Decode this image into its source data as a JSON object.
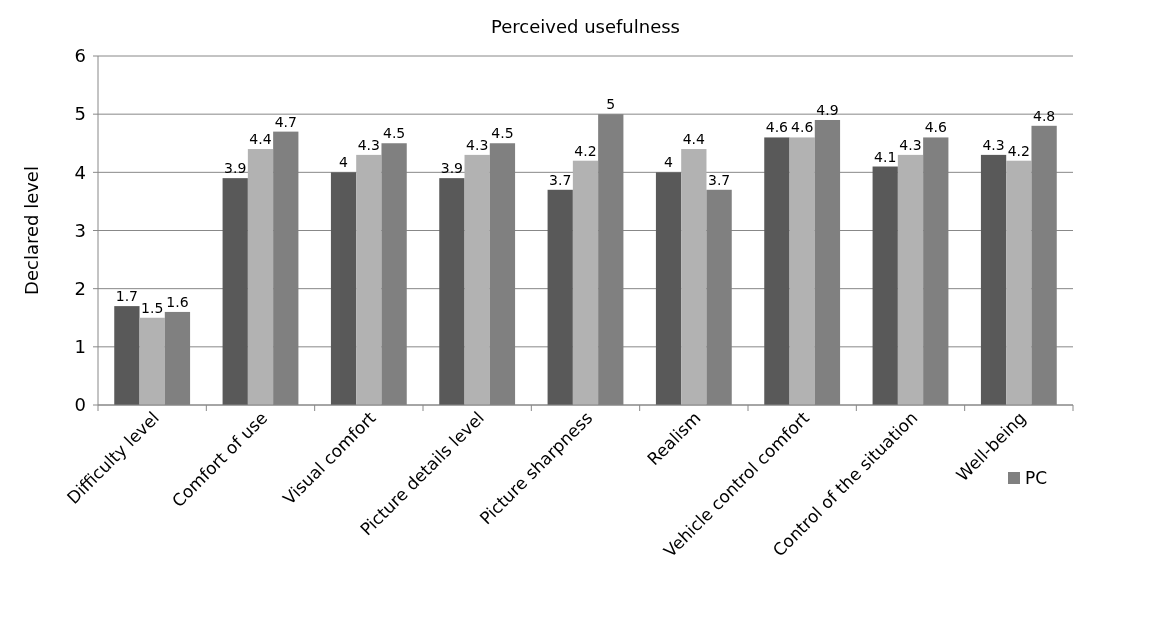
{
  "chart_data": {
    "type": "bar",
    "title": "Perceived usefulness",
    "ylabel": "Declared level",
    "categories": [
      "Difficulty level",
      "Comfort of use",
      "Visual comfort",
      "Picture details level",
      "Picture sharpness",
      "Realism",
      "Vehicle control comfort",
      "Control of the situation",
      "Well-being"
    ],
    "series": [
      {
        "color": "#595959",
        "values": [
          1.7,
          3.9,
          4,
          3.9,
          3.7,
          4,
          4.6,
          4.1,
          4.3
        ]
      },
      {
        "color": "#b2b2b2",
        "values": [
          1.5,
          4.4,
          4.3,
          4.3,
          4.2,
          4.4,
          4.6,
          4.3,
          4.2
        ]
      },
      {
        "name": "PC",
        "color": "#808080",
        "values": [
          1.6,
          4.7,
          4.5,
          4.5,
          5,
          3.7,
          4.9,
          4.6,
          4.8
        ]
      }
    ],
    "ylim": [
      0,
      6
    ],
    "yticks": [
      0,
      1,
      2,
      3,
      4,
      5,
      6
    ],
    "grid": "y",
    "data_labels": true,
    "legend": "bottom right"
  }
}
